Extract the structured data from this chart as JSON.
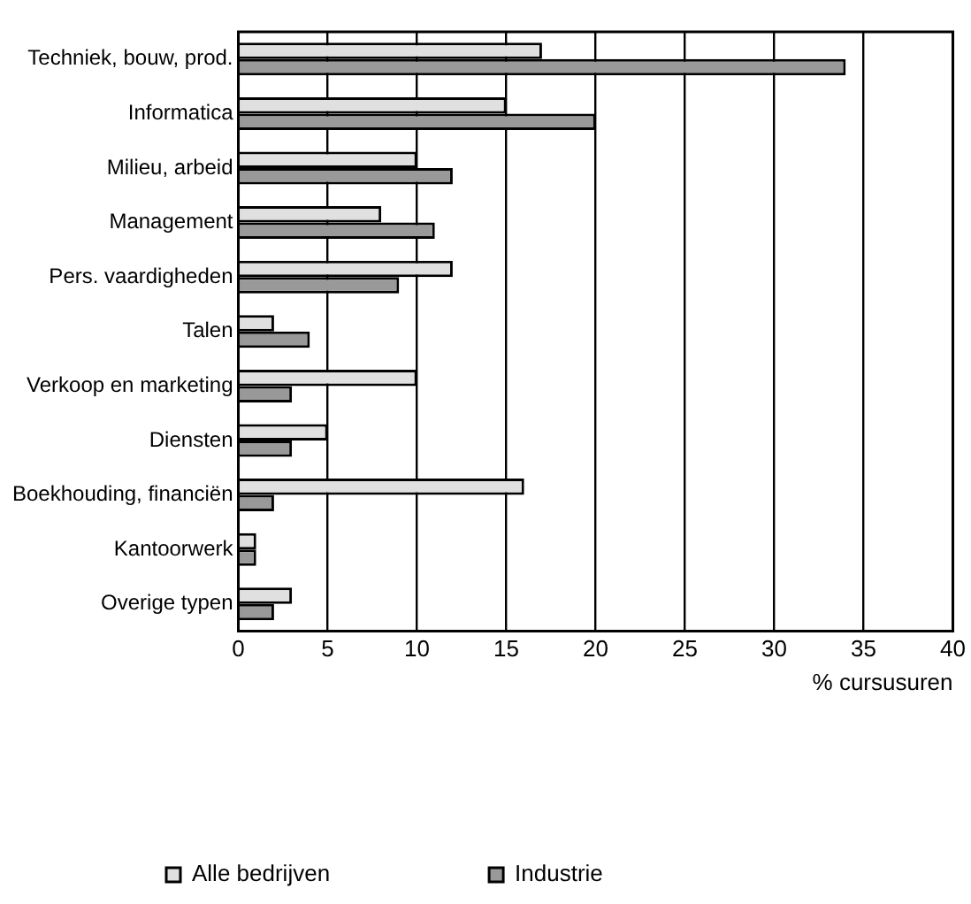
{
  "chart_data": {
    "type": "bar",
    "orientation": "horizontal",
    "xlabel": "% cursusuren",
    "categories": [
      "Techniek, bouw, prod.",
      "Informatica",
      "Milieu, arbeid",
      "Management",
      "Pers. vaardigheden",
      "Talen",
      "Verkoop en marketing",
      "Diensten",
      "Boekhouding, financiën",
      "Kantoorwerk",
      "Overige typen"
    ],
    "series": [
      {
        "name": "Alle bedrijven",
        "color": "#e0e0e0",
        "values": [
          17,
          15,
          10,
          8,
          12,
          2,
          10,
          5,
          16,
          1,
          3
        ]
      },
      {
        "name": "Industrie",
        "color": "#999999",
        "values": [
          34,
          20,
          12,
          11,
          9,
          4,
          3,
          3,
          2,
          1,
          2
        ]
      }
    ],
    "xlim": [
      0,
      40
    ],
    "xticks": [
      0,
      5,
      10,
      15,
      20,
      25,
      30,
      35,
      40
    ],
    "grid": "x",
    "legend": "bottom left"
  }
}
